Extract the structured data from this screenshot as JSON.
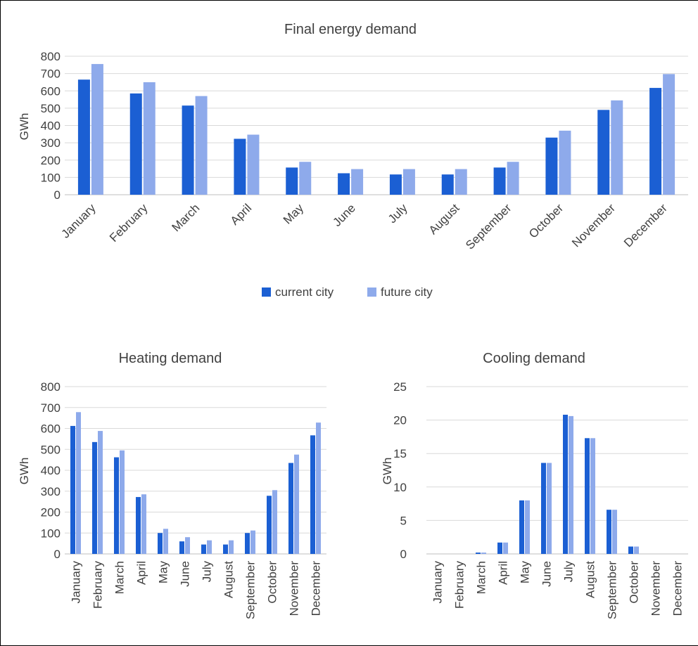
{
  "colors": {
    "current": "#1b5fd3",
    "future": "#8eaaeb"
  },
  "legend": {
    "current": "current city",
    "future": "future city"
  },
  "chart_data": [
    {
      "id": "final",
      "type": "bar",
      "title": "Final energy demand",
      "xlabel": "",
      "ylabel": "GWh",
      "ylim": [
        0,
        800
      ],
      "yticks": [
        "0",
        "100",
        "200",
        "300",
        "400",
        "500",
        "600",
        "700",
        "800"
      ],
      "grid": true,
      "legend_position": "bottom",
      "categories": [
        "January",
        "February",
        "March",
        "April",
        "May",
        "June",
        "July",
        "August",
        "September",
        "October",
        "November",
        "December"
      ],
      "series": [
        {
          "name": "current city",
          "values": [
            665,
            585,
            515,
            323,
            157,
            124,
            117,
            117,
            157,
            330,
            490,
            617
          ]
        },
        {
          "name": "future city",
          "values": [
            755,
            650,
            570,
            347,
            190,
            148,
            148,
            148,
            190,
            370,
            545,
            697
          ]
        }
      ]
    },
    {
      "id": "heating",
      "type": "bar",
      "title": "Heating demand",
      "xlabel": "",
      "ylabel": "GWh",
      "ylim": [
        0,
        800
      ],
      "yticks": [
        "0",
        "100",
        "200",
        "300",
        "400",
        "500",
        "600",
        "700",
        "800"
      ],
      "grid": true,
      "categories": [
        "January",
        "February",
        "March",
        "April",
        "May",
        "June",
        "July",
        "August",
        "September",
        "October",
        "November",
        "December"
      ],
      "series": [
        {
          "name": "current city",
          "values": [
            612,
            535,
            462,
            272,
            100,
            60,
            45,
            45,
            100,
            278,
            435,
            567
          ]
        },
        {
          "name": "future city",
          "values": [
            678,
            588,
            495,
            285,
            120,
            80,
            65,
            65,
            112,
            305,
            475,
            628
          ]
        }
      ]
    },
    {
      "id": "cooling",
      "type": "bar",
      "title": "Cooling demand",
      "xlabel": "",
      "ylabel": "GWh",
      "ylim": [
        0,
        25
      ],
      "yticks": [
        "0",
        "5",
        "10",
        "15",
        "20",
        "25"
      ],
      "grid": true,
      "categories": [
        "January",
        "February",
        "March",
        "April",
        "May",
        "June",
        "July",
        "August",
        "September",
        "October",
        "November",
        "December"
      ],
      "series": [
        {
          "name": "current city",
          "values": [
            0,
            0,
            0.2,
            1.7,
            8.0,
            13.6,
            20.8,
            17.3,
            6.6,
            1.1,
            0,
            0
          ]
        },
        {
          "name": "future city",
          "values": [
            0,
            0,
            0.2,
            1.7,
            8.0,
            13.6,
            20.6,
            17.3,
            6.6,
            1.1,
            0,
            0
          ]
        }
      ]
    }
  ]
}
